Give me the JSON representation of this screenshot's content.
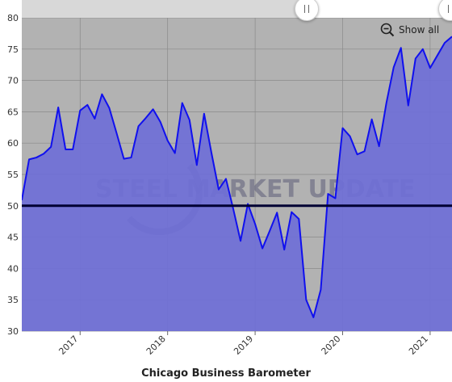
{
  "chart_data": {
    "type": "area",
    "title": "Chicago Business Barometer",
    "xlabel": "",
    "ylabel": "",
    "ylim": [
      30,
      80
    ],
    "yticks": [
      30,
      35,
      40,
      45,
      50,
      55,
      60,
      65,
      70,
      75,
      80
    ],
    "xlim": [
      "2016-05",
      "2021-04"
    ],
    "xticks": [
      "2017",
      "2018",
      "2019",
      "2020",
      "2021"
    ],
    "reference_line": 50,
    "grid": true,
    "series": [
      {
        "x": [
          "2016-05",
          "2016-06",
          "2016-07",
          "2016-08",
          "2016-09",
          "2016-10",
          "2016-11",
          "2016-12",
          "2017-01",
          "2017-02",
          "2017-03",
          "2017-04",
          "2017-05",
          "2017-06",
          "2017-07",
          "2017-08",
          "2017-09",
          "2017-10",
          "2017-11",
          "2017-12",
          "2018-01",
          "2018-02",
          "2018-03",
          "2018-04",
          "2018-05",
          "2018-06",
          "2018-07",
          "2018-08",
          "2018-09",
          "2018-10",
          "2018-11",
          "2018-12",
          "2019-01",
          "2019-02",
          "2019-03",
          "2019-04",
          "2019-05",
          "2019-06",
          "2019-07",
          "2019-08",
          "2019-09",
          "2019-10",
          "2019-11",
          "2019-12",
          "2020-01",
          "2020-02",
          "2020-03",
          "2020-04",
          "2020-05",
          "2020-06",
          "2020-07",
          "2020-08",
          "2020-09",
          "2020-10",
          "2020-11",
          "2020-12",
          "2021-01",
          "2021-02",
          "2021-03",
          "2021-04"
        ],
        "values": [
          50.9,
          57.4,
          57.7,
          58.3,
          59.4,
          65.7,
          59.0,
          59.0,
          65.2,
          66.1,
          63.9,
          67.8,
          65.6,
          61.6,
          57.5,
          57.7,
          62.7,
          64.0,
          65.4,
          63.4,
          60.4,
          58.4,
          66.4,
          63.7,
          56.5,
          64.7,
          58.5,
          52.6,
          54.3,
          49.5,
          44.4,
          50.3,
          47.1,
          43.2,
          46.0,
          48.9,
          43.0,
          49.0,
          47.9,
          35.0,
          32.2,
          36.6,
          51.9,
          51.2,
          62.4,
          61.1,
          58.2,
          58.7,
          63.8,
          59.5,
          66.4,
          72.1,
          75.2,
          66.0,
          73.5,
          75.0,
          72.0,
          74.0,
          76.0,
          77.0
        ],
        "fill": "#6f6fd6",
        "line": "#1010ee"
      }
    ],
    "watermark": "STEEL MARKET UPDATE"
  },
  "controls": {
    "show_all_label": "Show all",
    "zoom_icon": "zoom-out-icon",
    "handle_left_icon": "scroll-handle-grip",
    "handle_right_icon": "scroll-handle-grip"
  },
  "colors": {
    "plot_bg": "#b2b2b2",
    "area_fill": "#6f6fd6",
    "line": "#1010ee",
    "reference_line": "#000033",
    "watermark": "#6a6a82"
  }
}
